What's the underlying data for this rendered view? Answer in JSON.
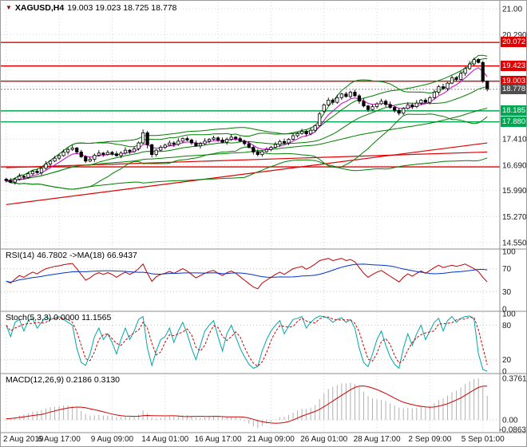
{
  "chart_data": [
    {
      "type": "candlestick",
      "symbol": "XAGUSD,H4",
      "marker_icon": "▼",
      "ohlc_line": "19.003 19.023 18.725 18.778",
      "ylim": [
        14.55,
        21.0
      ],
      "yticks": [
        {
          "v": 21.0,
          "t": "21.00"
        },
        {
          "v": 20.29,
          "t": "20.290"
        },
        {
          "v": 19.572,
          "t": ""
        },
        {
          "v": 18.855,
          "t": ""
        },
        {
          "v": 18.138,
          "t": ""
        },
        {
          "v": 17.41,
          "t": "17.410"
        },
        {
          "v": 16.69,
          "t": "16.690"
        },
        {
          "v": 15.99,
          "t": "15.990"
        },
        {
          "v": 15.27,
          "t": "15.270"
        },
        {
          "v": 14.55,
          "t": "14.550"
        }
      ],
      "x_labels": [
        "2 Aug 2019",
        "6 Aug 17:00",
        "9 Aug 09:00",
        "14 Aug 01:00",
        "16 Aug 17:00",
        "21 Aug 09:00",
        "26 Aug 01:00",
        "28 Aug 17:00",
        "2 Sep 09:00",
        "5 Sep 01:00"
      ],
      "x_label_bars": [
        0,
        12,
        24,
        36,
        48,
        60,
        72,
        84,
        96,
        108
      ],
      "candles": {
        "open": [
          16.3,
          16.26,
          16.22,
          16.3,
          16.38,
          16.35,
          16.45,
          16.52,
          16.48,
          16.6,
          16.72,
          16.8,
          16.88,
          16.95,
          17.05,
          17.12,
          17.16,
          17.05,
          16.92,
          16.8,
          16.85,
          16.96,
          17.02,
          16.98,
          17.04,
          17.0,
          16.95,
          17.02,
          17.1,
          17.06,
          17.14,
          17.3,
          17.58,
          17.25,
          16.98,
          17.1,
          17.18,
          17.24,
          17.3,
          17.26,
          17.35,
          17.42,
          17.38,
          17.3,
          17.22,
          17.28,
          17.35,
          17.4,
          17.44,
          17.38,
          17.32,
          17.4,
          17.46,
          17.42,
          17.35,
          17.28,
          17.18,
          17.05,
          16.98,
          17.06,
          17.12,
          17.18,
          17.26,
          17.34,
          17.3,
          17.4,
          17.5,
          17.56,
          17.62,
          17.55,
          17.65,
          17.78,
          18.18,
          18.35,
          18.48,
          18.42,
          18.55,
          18.65,
          18.58,
          18.7,
          18.6,
          18.45,
          18.32,
          18.22,
          18.3,
          18.38,
          18.45,
          18.36,
          18.28,
          18.2,
          18.12,
          18.25,
          18.35,
          18.3,
          18.4,
          18.48,
          18.42,
          18.55,
          18.7,
          18.85,
          18.8,
          18.95,
          19.1,
          19.05,
          19.22,
          19.35,
          19.48,
          19.6,
          19.52,
          19.003
        ],
        "high": [
          16.34,
          16.33,
          16.35,
          16.46,
          16.41,
          16.51,
          16.56,
          16.59,
          16.65,
          16.8,
          16.83,
          16.94,
          16.99,
          17.12,
          17.17,
          17.24,
          17.19,
          17.11,
          16.96,
          16.92,
          17.01,
          17.1,
          17.05,
          17.1,
          17.08,
          17.07,
          17.07,
          17.18,
          17.13,
          17.2,
          17.34,
          17.67,
          17.63,
          17.28,
          17.13,
          17.24,
          17.28,
          17.37,
          17.35,
          17.43,
          17.45,
          17.48,
          17.42,
          17.37,
          17.33,
          17.43,
          17.43,
          17.5,
          17.48,
          17.45,
          17.45,
          17.54,
          17.49,
          17.48,
          17.39,
          17.35,
          17.23,
          17.13,
          17.09,
          17.18,
          17.22,
          17.33,
          17.39,
          17.42,
          17.43,
          17.56,
          17.6,
          17.69,
          17.67,
          17.73,
          17.81,
          18.16,
          18.39,
          18.55,
          18.53,
          18.63,
          18.68,
          18.71,
          18.74,
          18.77,
          18.65,
          18.53,
          18.35,
          18.36,
          18.42,
          18.52,
          18.5,
          18.44,
          18.31,
          18.26,
          18.29,
          18.42,
          18.4,
          18.48,
          18.51,
          18.54,
          18.59,
          18.77,
          18.9,
          18.93,
          18.98,
          19.16,
          19.14,
          19.29,
          19.4,
          19.56,
          19.65,
          19.64,
          19.56,
          19.023
        ],
        "low": [
          16.21,
          16.19,
          16.15,
          16.26,
          16.29,
          16.32,
          16.4,
          16.45,
          16.41,
          16.56,
          16.66,
          16.77,
          16.83,
          16.92,
          16.98,
          17.08,
          16.99,
          16.89,
          16.75,
          16.77,
          16.78,
          16.92,
          16.92,
          16.95,
          16.95,
          16.92,
          16.88,
          16.98,
          17.0,
          17.03,
          17.09,
          17.27,
          17.15,
          16.9,
          16.92,
          17.07,
          17.13,
          17.21,
          17.19,
          17.22,
          17.29,
          17.35,
          17.25,
          17.19,
          17.15,
          17.24,
          17.29,
          17.37,
          17.33,
          17.29,
          17.25,
          17.36,
          17.36,
          17.32,
          17.23,
          17.15,
          16.98,
          16.93,
          16.92,
          17.03,
          17.07,
          17.15,
          17.19,
          17.26,
          17.24,
          17.37,
          17.45,
          17.53,
          17.48,
          17.51,
          17.59,
          17.75,
          18.13,
          18.32,
          18.35,
          18.38,
          18.49,
          18.55,
          18.53,
          18.57,
          18.38,
          18.28,
          18.16,
          18.19,
          18.25,
          18.35,
          18.29,
          18.24,
          18.14,
          18.06,
          18.07,
          18.22,
          18.23,
          18.26,
          18.34,
          18.39,
          18.37,
          18.52,
          18.63,
          18.76,
          18.74,
          18.92,
          19.0,
          19.02,
          19.15,
          19.31,
          19.42,
          19.49,
          18.96,
          18.725
        ],
        "close": [
          16.26,
          16.22,
          16.3,
          16.38,
          16.35,
          16.45,
          16.52,
          16.48,
          16.6,
          16.72,
          16.8,
          16.88,
          16.95,
          17.05,
          17.12,
          17.16,
          17.05,
          16.92,
          16.8,
          16.85,
          16.96,
          17.02,
          16.98,
          17.04,
          17.0,
          16.95,
          17.02,
          17.1,
          17.06,
          17.14,
          17.3,
          17.58,
          17.25,
          16.98,
          17.1,
          17.18,
          17.24,
          17.3,
          17.26,
          17.35,
          17.42,
          17.38,
          17.3,
          17.22,
          17.28,
          17.35,
          17.4,
          17.44,
          17.38,
          17.32,
          17.4,
          17.46,
          17.42,
          17.35,
          17.28,
          17.18,
          17.05,
          16.98,
          17.06,
          17.12,
          17.18,
          17.26,
          17.34,
          17.3,
          17.4,
          17.5,
          17.56,
          17.62,
          17.55,
          17.65,
          17.78,
          18.1,
          18.35,
          18.48,
          18.42,
          18.55,
          18.65,
          18.58,
          18.7,
          18.6,
          18.45,
          18.32,
          18.22,
          18.3,
          18.38,
          18.45,
          18.36,
          18.28,
          18.2,
          18.12,
          18.25,
          18.35,
          18.3,
          18.4,
          18.48,
          18.42,
          18.55,
          18.7,
          18.85,
          18.8,
          18.95,
          19.1,
          19.05,
          19.22,
          19.35,
          19.48,
          19.6,
          19.52,
          19.0,
          18.778
        ]
      },
      "levels": [
        {
          "value": 20.072,
          "label": "20.072",
          "color": "#e00000",
          "badge": true
        },
        {
          "value": 19.423,
          "label": "19.423",
          "color": "#e00000",
          "badge": true
        },
        {
          "value": 19.003,
          "label": "19.003",
          "color": "#e00000",
          "badge": true
        },
        {
          "value": 18.185,
          "label": "18.185",
          "color": "#00a651",
          "badge": true
        },
        {
          "value": 17.88,
          "label": "17.880",
          "color": "#00a651",
          "badge": true
        },
        {
          "value": 16.64,
          "label": "",
          "color": "#e00000",
          "badge": false
        }
      ],
      "current": {
        "value": 18.778,
        "label": "18.778",
        "color": "#4f4f4f"
      },
      "trendlines": [
        {
          "from_bar": 0,
          "from_price": 15.6,
          "to_bar": 109,
          "to_price": 17.3,
          "color": "#e00000"
        },
        {
          "from_bar": 0,
          "from_price": 16.62,
          "to_bar": 109,
          "to_price": 17.05,
          "color": "#e00000"
        }
      ],
      "bands": [
        {
          "window": 20,
          "mult": 2.0,
          "color": "#007f00"
        },
        {
          "window": 55,
          "mult": 2.0,
          "color": "#007f00"
        }
      ],
      "fast_ma": {
        "window": 6,
        "color": "#cc00cc"
      }
    },
    {
      "type": "line",
      "name": "RSI",
      "header": "RSI(14) 46.7802 ->MA(18) 66.9437",
      "range": [
        0,
        100
      ],
      "level_lines": [
        70,
        30
      ],
      "yticks": [
        {
          "v": 100,
          "t": "100"
        },
        {
          "v": 70,
          "t": "70"
        },
        {
          "v": 30,
          "t": "30"
        },
        {
          "v": 0,
          "t": "0"
        }
      ],
      "ma_window": 18,
      "line_color": "#c00000",
      "ma_color": "#0033cc",
      "values": [
        48,
        45,
        52,
        58,
        55,
        60,
        64,
        61,
        66,
        70,
        72,
        74,
        75,
        77,
        78,
        79,
        70,
        60,
        50,
        54,
        60,
        63,
        60,
        63,
        60,
        55,
        60,
        64,
        60,
        64,
        70,
        78,
        62,
        48,
        56,
        60,
        62,
        65,
        62,
        66,
        70,
        66,
        60,
        54,
        58,
        62,
        65,
        67,
        62,
        58,
        63,
        66,
        62,
        56,
        50,
        44,
        38,
        35,
        45,
        50,
        55,
        60,
        64,
        60,
        65,
        70,
        72,
        74,
        69,
        73,
        78,
        84,
        86,
        88,
        84,
        86,
        88,
        84,
        86,
        82,
        72,
        62,
        55,
        60,
        64,
        67,
        62,
        57,
        52,
        47,
        55,
        61,
        57,
        62,
        66,
        62,
        67,
        72,
        76,
        72,
        74,
        76,
        74,
        76,
        78,
        74,
        70,
        65,
        55,
        47
      ]
    },
    {
      "type": "line",
      "name": "Stochastic",
      "header": "Stoch(5,3,3) 0.0000 11.1565",
      "range": [
        0,
        100
      ],
      "level_lines": [
        80,
        20
      ],
      "yticks": [
        {
          "v": 100,
          "t": "100"
        },
        {
          "v": 80,
          "t": "80"
        },
        {
          "v": 20,
          "t": "20"
        },
        {
          "v": 0,
          "t": "0"
        }
      ],
      "d_window": 3,
      "k_color": "#00a7a7",
      "d_color": "#d00000",
      "k_values": [
        80,
        60,
        85,
        90,
        70,
        88,
        92,
        75,
        85,
        95,
        90,
        92,
        95,
        90,
        85,
        80,
        40,
        15,
        10,
        30,
        60,
        75,
        55,
        65,
        50,
        30,
        55,
        75,
        55,
        70,
        90,
        95,
        40,
        10,
        35,
        55,
        60,
        75,
        50,
        70,
        85,
        65,
        40,
        20,
        45,
        70,
        80,
        88,
        60,
        35,
        65,
        80,
        60,
        40,
        25,
        12,
        5,
        8,
        35,
        55,
        70,
        80,
        88,
        65,
        78,
        90,
        92,
        95,
        75,
        85,
        92,
        96,
        95,
        92,
        85,
        90,
        93,
        85,
        90,
        75,
        40,
        15,
        8,
        30,
        55,
        70,
        45,
        25,
        12,
        5,
        40,
        65,
        45,
        65,
        80,
        55,
        70,
        85,
        92,
        70,
        88,
        95,
        85,
        92,
        95,
        96,
        90,
        30,
        3,
        0
      ]
    },
    {
      "type": "bar",
      "name": "MACD",
      "header": "MACD(12,26,9) 0.2186 0.3130",
      "range": [
        -0.0863,
        0.3761
      ],
      "yticks": [
        {
          "v": 0.3761,
          "t": "0.3761"
        },
        {
          "v": 0,
          "t": "0.00"
        },
        {
          "v": -0.0863,
          "t": "-0.0863"
        }
      ],
      "signal_window": 9,
      "hist_color": "#b0b0b0",
      "signal_color": "#d00000",
      "values": [
        0.01,
        0.015,
        0.025,
        0.04,
        0.05,
        0.06,
        0.075,
        0.08,
        0.09,
        0.105,
        0.115,
        0.12,
        0.125,
        0.13,
        0.13,
        0.125,
        0.105,
        0.08,
        0.055,
        0.04,
        0.04,
        0.045,
        0.04,
        0.04,
        0.035,
        0.025,
        0.022,
        0.028,
        0.025,
        0.03,
        0.05,
        0.085,
        0.06,
        0.02,
        0.015,
        0.02,
        0.025,
        0.032,
        0.03,
        0.035,
        0.045,
        0.045,
        0.035,
        0.022,
        0.018,
        0.022,
        0.03,
        0.038,
        0.035,
        0.025,
        0.025,
        0.03,
        0.025,
        0.012,
        -0.01,
        -0.035,
        -0.06,
        -0.075,
        -0.055,
        -0.035,
        -0.015,
        0.005,
        0.025,
        0.03,
        0.045,
        0.065,
        0.085,
        0.1,
        0.1,
        0.11,
        0.135,
        0.19,
        0.24,
        0.28,
        0.3,
        0.315,
        0.33,
        0.33,
        0.335,
        0.325,
        0.295,
        0.255,
        0.215,
        0.195,
        0.185,
        0.18,
        0.17,
        0.15,
        0.13,
        0.11,
        0.105,
        0.11,
        0.105,
        0.11,
        0.12,
        0.115,
        0.125,
        0.15,
        0.18,
        0.195,
        0.22,
        0.25,
        0.265,
        0.295,
        0.325,
        0.35,
        0.37,
        0.376,
        0.3,
        0.219
      ]
    }
  ]
}
